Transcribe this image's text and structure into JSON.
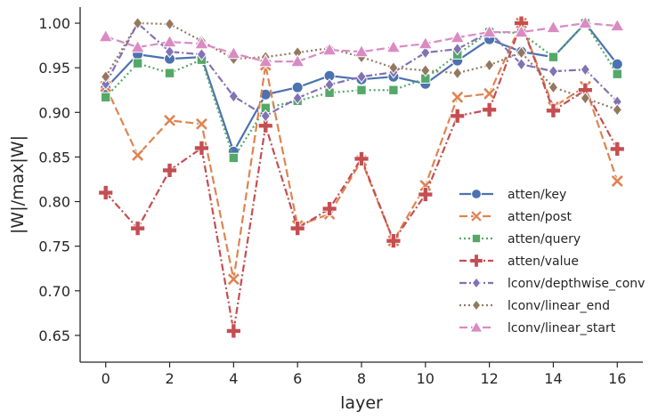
{
  "chart_data": {
    "type": "line",
    "title": "",
    "xlabel": "layer",
    "ylabel": "|W|/max|W|",
    "xlim": [
      -0.8,
      16.8
    ],
    "ylim": [
      0.62,
      1.018
    ],
    "xticks": [
      0,
      2,
      4,
      6,
      8,
      10,
      12,
      14,
      16
    ],
    "xtick_labels": [
      "0",
      "2",
      "4",
      "6",
      "8",
      "10",
      "12",
      "14",
      "16"
    ],
    "yticks": [
      0.65,
      0.7,
      0.75,
      0.8,
      0.85,
      0.9,
      0.95,
      1.0
    ],
    "ytick_labels": [
      "0.65",
      "0.70",
      "0.75",
      "0.80",
      "0.85",
      "0.90",
      "0.95",
      "1.00"
    ],
    "grid": false,
    "legend_position": "center-right",
    "x": [
      0,
      1,
      2,
      3,
      4,
      5,
      6,
      7,
      8,
      9,
      10,
      11,
      12,
      13,
      14,
      15,
      16
    ],
    "series": [
      {
        "name": "atten/key",
        "color": "#4c72b0",
        "dash": "solid",
        "marker": "circle",
        "values": [
          0.927,
          0.965,
          0.96,
          0.962,
          0.856,
          0.92,
          0.928,
          0.941,
          0.937,
          0.94,
          0.932,
          0.958,
          0.982,
          0.968,
          0.962,
          1.0,
          0.954
        ]
      },
      {
        "name": "atten/post",
        "color": "#dd8452",
        "dash": "dashed",
        "marker": "x",
        "values": [
          0.929,
          0.852,
          0.891,
          0.887,
          0.713,
          0.953,
          0.773,
          0.786,
          0.846,
          0.756,
          0.818,
          0.917,
          0.921,
          1.0,
          0.906,
          0.929,
          0.823
        ]
      },
      {
        "name": "atten/query",
        "color": "#55a868",
        "dash": "dotted",
        "marker": "square",
        "values": [
          0.917,
          0.955,
          0.944,
          0.959,
          0.849,
          0.905,
          0.913,
          0.922,
          0.925,
          0.925,
          0.938,
          0.965,
          0.99,
          0.989,
          0.962,
          1.0,
          0.943
        ]
      },
      {
        "name": "atten/value",
        "color": "#c44e52",
        "dash": "dashdot",
        "marker": "plus",
        "values": [
          0.81,
          0.77,
          0.835,
          0.86,
          0.655,
          0.885,
          0.77,
          0.792,
          0.848,
          0.756,
          0.808,
          0.896,
          0.903,
          1.0,
          0.902,
          0.925,
          0.859
        ]
      },
      {
        "name": "lconv/depthwise_conv",
        "color": "#8172b3",
        "dash": "dashdot",
        "marker": "diamond",
        "values": [
          0.932,
          1.0,
          0.968,
          0.965,
          0.918,
          0.896,
          0.916,
          0.931,
          0.94,
          0.945,
          0.967,
          0.971,
          0.99,
          0.954,
          0.946,
          0.948,
          0.912
        ]
      },
      {
        "name": "lconv/linear_end",
        "color": "#937860",
        "dash": "dotted",
        "marker": "diamond",
        "values": [
          0.94,
          1.0,
          0.999,
          0.98,
          0.96,
          0.962,
          0.967,
          0.972,
          0.962,
          0.95,
          0.947,
          0.944,
          0.953,
          0.967,
          0.928,
          0.916,
          0.903
        ]
      },
      {
        "name": "lconv/linear_start",
        "color": "#da8bc3",
        "dash": "dashed",
        "marker": "triangle",
        "values": [
          0.985,
          0.973,
          0.979,
          0.977,
          0.966,
          0.957,
          0.957,
          0.97,
          0.968,
          0.973,
          0.977,
          0.984,
          0.99,
          0.99,
          0.995,
          1.0,
          0.997
        ]
      }
    ]
  }
}
